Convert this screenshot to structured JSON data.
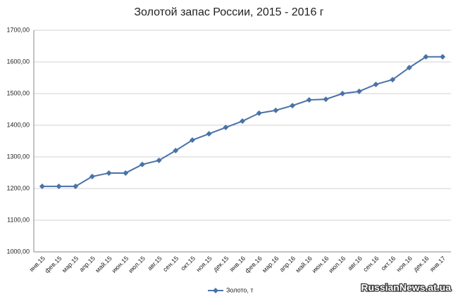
{
  "chart_data": {
    "type": "line",
    "title": "Золотой запас России, 2015 - 2016 г",
    "categories": [
      "янв.15",
      "фев.15",
      "мар.15",
      "апр.15",
      "май.15",
      "июн.15",
      "июл.15",
      "авг.15",
      "сен.15",
      "окт.15",
      "ноя.15",
      "дек.15",
      "янв.16",
      "фев.16",
      "мар.16",
      "апр.16",
      "май.16",
      "июн.16",
      "июл.16",
      "авг.16",
      "сен.16",
      "окт.16",
      "ноя.16",
      "дек.16",
      "янв.17"
    ],
    "series": [
      {
        "name": "Золото, т",
        "color": "#4a72a8",
        "values": [
          1207,
          1207,
          1207,
          1238,
          1249,
          1249,
          1276,
          1289,
          1320,
          1353,
          1373,
          1393,
          1413,
          1438,
          1447,
          1462,
          1480,
          1482,
          1500,
          1507,
          1529,
          1544,
          1582,
          1616,
          1616
        ]
      }
    ],
    "ylim": [
      1000,
      1700
    ],
    "yticks": [
      {
        "value": 1000,
        "label": "1000,00"
      },
      {
        "value": 1100,
        "label": "1100,00"
      },
      {
        "value": 1200,
        "label": "1200,00"
      },
      {
        "value": 1300,
        "label": "1300,00"
      },
      {
        "value": 1400,
        "label": "1400,00"
      },
      {
        "value": 1500,
        "label": "1500,00"
      },
      {
        "value": 1600,
        "label": "1600,00"
      },
      {
        "value": 1700,
        "label": "1700,00"
      }
    ],
    "grid": true,
    "legend": "bottom",
    "watermark": "RussianNews.at.ua"
  }
}
